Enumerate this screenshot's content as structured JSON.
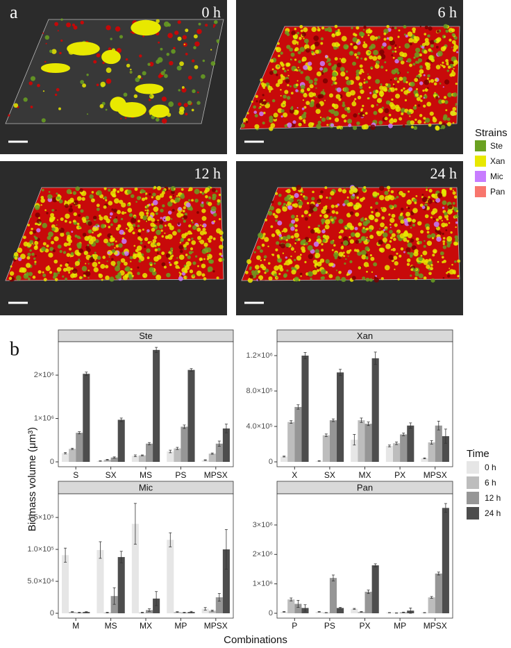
{
  "figure_a": {
    "label": "a",
    "panels": [
      "0 h",
      "6 h",
      "12 h",
      "24 h"
    ],
    "legend_title": "Strains",
    "strains": [
      {
        "name": "Ste",
        "color": "#6aa121"
      },
      {
        "name": "Xan",
        "color": "#e8e800"
      },
      {
        "name": "Mic",
        "color": "#c77cff"
      },
      {
        "name": "Pan",
        "color": "#f8766d"
      }
    ]
  },
  "panel_b": {
    "label": "b",
    "y_label": "Biomass volume (μm³)",
    "x_label": "Combinations",
    "legend_title": "Time"
  },
  "chart_data": [
    {
      "type": "bar",
      "title": "Ste",
      "categories": [
        "S",
        "SX",
        "MS",
        "PS",
        "MPSX"
      ],
      "series": [
        {
          "name": "0 h",
          "color": "#e6e6e6",
          "values": [
            200000,
            20000,
            140000,
            240000,
            40000
          ],
          "errors": [
            15000,
            5000,
            20000,
            30000,
            8000
          ]
        },
        {
          "name": "6 h",
          "color": "#bdbdbd",
          "values": [
            300000,
            50000,
            150000,
            310000,
            190000
          ],
          "errors": [
            15000,
            8000,
            10000,
            25000,
            15000
          ]
        },
        {
          "name": "12 h",
          "color": "#969696",
          "values": [
            670000,
            100000,
            420000,
            810000,
            420000
          ],
          "errors": [
            25000,
            15000,
            25000,
            40000,
            60000
          ]
        },
        {
          "name": "24 h",
          "color": "#4d4d4d",
          "values": [
            2030000,
            970000,
            2580000,
            2120000,
            770000
          ],
          "errors": [
            40000,
            40000,
            60000,
            30000,
            100000
          ]
        }
      ],
      "ylim": [
        -112000,
        2770000
      ],
      "yticks": [
        0,
        {
          "value": 1000000,
          "label": "1×10⁶"
        },
        {
          "value": 2000000,
          "label": "2×10⁶"
        }
      ]
    },
    {
      "type": "bar",
      "title": "Xan",
      "categories": [
        "X",
        "SX",
        "MX",
        "PX",
        "MPSX"
      ],
      "series": [
        {
          "name": "0 h",
          "color": "#e6e6e6",
          "values": [
            60000,
            10000,
            250000,
            180000,
            40000
          ],
          "errors": [
            5000,
            3000,
            60000,
            10000,
            5000
          ]
        },
        {
          "name": "6 h",
          "color": "#bdbdbd",
          "values": [
            450000,
            300000,
            470000,
            210000,
            220000
          ],
          "errors": [
            15000,
            15000,
            25000,
            15000,
            20000
          ]
        },
        {
          "name": "12 h",
          "color": "#969696",
          "values": [
            620000,
            470000,
            430000,
            310000,
            410000
          ],
          "errors": [
            25000,
            15000,
            20000,
            15000,
            50000
          ]
        },
        {
          "name": "24 h",
          "color": "#4d4d4d",
          "values": [
            1200000,
            1010000,
            1170000,
            410000,
            290000
          ],
          "errors": [
            35000,
            35000,
            70000,
            30000,
            80000
          ]
        }
      ],
      "ylim": [
        -55000,
        1357000
      ],
      "yticks": [
        0,
        {
          "value": 400000,
          "label": "4.0×10⁵"
        },
        {
          "value": 800000,
          "label": "8.0×10⁵"
        },
        {
          "value": 1200000,
          "label": "1.2×10⁶"
        }
      ]
    },
    {
      "type": "bar",
      "title": "Mic",
      "categories": [
        "M",
        "MS",
        "MX",
        "MP",
        "MPSX"
      ],
      "series": [
        {
          "name": "0 h",
          "color": "#e6e6e6",
          "values": [
            91000,
            99000,
            140000,
            115000,
            7000
          ],
          "errors": [
            11000,
            13000,
            32000,
            11000,
            2000
          ]
        },
        {
          "name": "6 h",
          "color": "#bdbdbd",
          "values": [
            2000,
            1000,
            1000,
            2000,
            4000
          ],
          "errors": [
            500,
            500,
            500,
            500,
            1000
          ]
        },
        {
          "name": "12 h",
          "color": "#969696",
          "values": [
            1000,
            27000,
            5000,
            1000,
            25000
          ],
          "errors": [
            500,
            13000,
            2000,
            500,
            6000
          ]
        },
        {
          "name": "24 h",
          "color": "#4d4d4d",
          "values": [
            2000,
            88000,
            23000,
            2000,
            100000
          ],
          "errors": [
            500,
            9000,
            11000,
            1000,
            31000
          ]
        }
      ],
      "ylim": [
        -7600,
        187000
      ],
      "yticks": [
        0,
        {
          "value": 50000,
          "label": "5.0×10⁴"
        },
        {
          "value": 100000,
          "label": "1.0×10⁵"
        },
        {
          "value": 150000,
          "label": "1.5×10⁵"
        }
      ]
    },
    {
      "type": "bar",
      "title": "Pan",
      "categories": [
        "P",
        "PS",
        "PX",
        "MP",
        "MPSX"
      ],
      "series": [
        {
          "name": "0 h",
          "color": "#e6e6e6",
          "values": [
            50000,
            50000,
            150000,
            20000,
            20000
          ],
          "errors": [
            10000,
            10000,
            15000,
            5000,
            5000
          ]
        },
        {
          "name": "6 h",
          "color": "#bdbdbd",
          "values": [
            470000,
            20000,
            50000,
            10000,
            540000
          ],
          "errors": [
            50000,
            5000,
            10000,
            5000,
            30000
          ]
        },
        {
          "name": "12 h",
          "color": "#969696",
          "values": [
            320000,
            1200000,
            730000,
            30000,
            1350000
          ],
          "errors": [
            120000,
            100000,
            60000,
            10000,
            50000
          ]
        },
        {
          "name": "24 h",
          "color": "#4d4d4d",
          "values": [
            180000,
            180000,
            1630000,
            90000,
            3580000
          ],
          "errors": [
            110000,
            20000,
            50000,
            90000,
            150000
          ]
        }
      ],
      "ylim": [
        -165000,
        4060000
      ],
      "yticks": [
        0,
        {
          "value": 1000000,
          "label": "1×10⁶"
        },
        {
          "value": 2000000,
          "label": "2×10⁶"
        },
        {
          "value": 3000000,
          "label": "3×10⁶"
        }
      ]
    }
  ]
}
